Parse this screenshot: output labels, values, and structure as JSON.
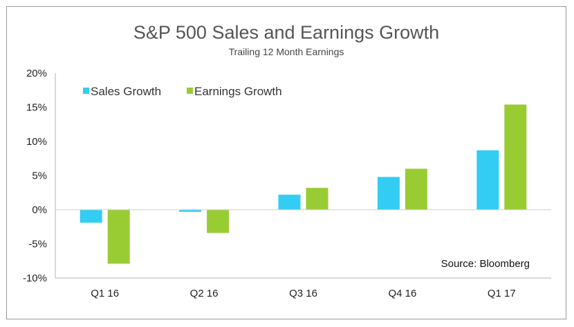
{
  "chart_data": {
    "type": "bar",
    "title": "S&P 500 Sales and Earnings Growth",
    "subtitle": "Trailing 12 Month Earnings",
    "categories": [
      "Q1 16",
      "Q2 16",
      "Q3 16",
      "Q4 16",
      "Q1 17"
    ],
    "series": [
      {
        "name": "Sales Growth",
        "color": "#33ccf2",
        "values": [
          -1.9,
          -0.3,
          2.2,
          4.8,
          8.7
        ]
      },
      {
        "name": "Earnings Growth",
        "color": "#99cc33",
        "values": [
          -7.9,
          -3.4,
          3.2,
          6.0,
          15.4
        ]
      }
    ],
    "ylim": [
      -10,
      20
    ],
    "yticks": [
      -10,
      -5,
      0,
      5,
      10,
      15,
      20
    ],
    "ytick_labels": [
      "-10%",
      "-5%",
      "0%",
      "5%",
      "10%",
      "15%",
      "20%"
    ],
    "grid": false,
    "legend_position": "top-left",
    "annotation": "Source: Bloomberg"
  }
}
